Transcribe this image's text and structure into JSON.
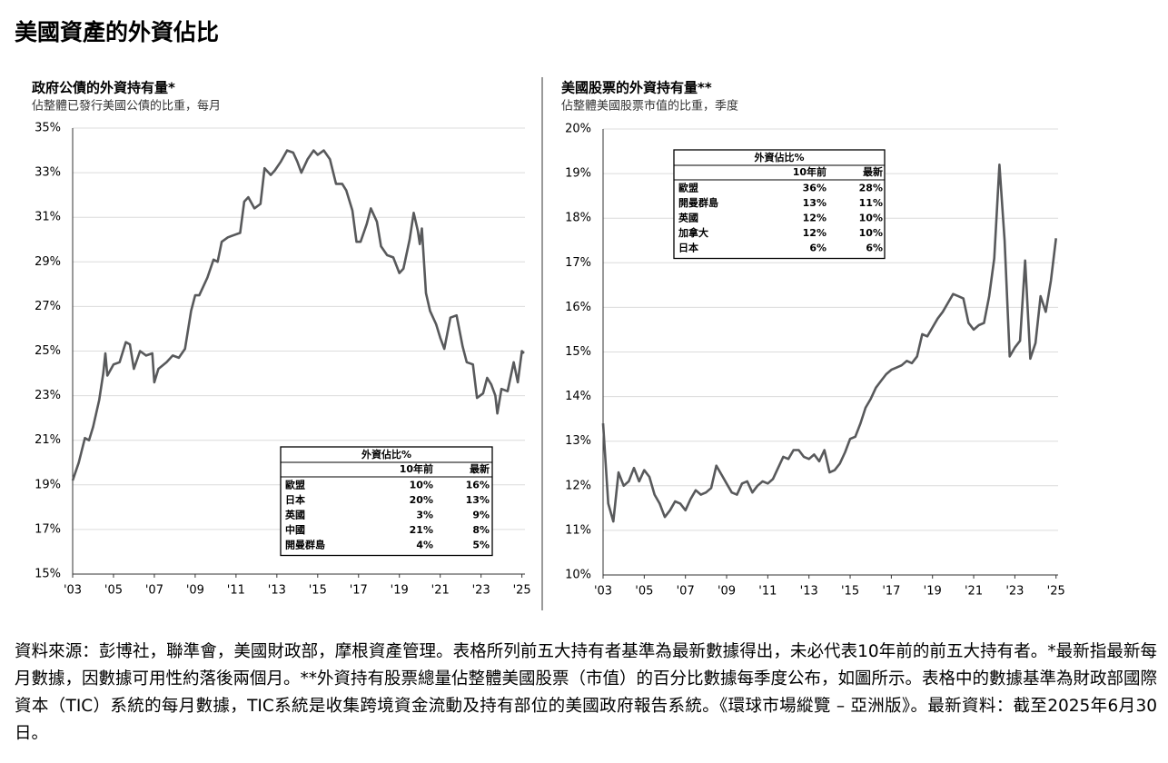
{
  "title": "美國資產的外資佔比",
  "footnote": "資料來源：彭博社，聯準會，美國財政部，摩根資產管理。表格所列前五大持有者基準為最新數據得出，未必代表10年前的前五大持有者。*最新指最新每月數據，因數據可用性約落後兩個月。**外資持有股票總量佔整體美國股票（市值）的百分比數據每季度公布，如圖所示。表格中的數據基準為財政部國際資本（TIC）系統的每月數據，TIC系統是收集跨境資金流動及持有部位的美國政府報告系統。《環球市場縱覽 – 亞洲版》。最新資料：截至2025年6月30日。",
  "chart_data": [
    {
      "type": "line",
      "title": "政府公債的外資持有量*",
      "subtitle": "佔整體已發行美國公債的比重，每月",
      "color": "#58595b",
      "grid": true,
      "x": [
        2003.0,
        2003.3,
        2003.6,
        2003.8,
        2004.0,
        2004.3,
        2004.5,
        2004.6,
        2004.7,
        2005.0,
        2005.3,
        2005.6,
        2005.8,
        2006.0,
        2006.3,
        2006.6,
        2006.9,
        2007.0,
        2007.2,
        2007.6,
        2007.9,
        2008.2,
        2008.5,
        2008.8,
        2009.0,
        2009.2,
        2009.6,
        2009.9,
        2010.1,
        2010.3,
        2010.6,
        2010.9,
        2011.2,
        2011.4,
        2011.6,
        2011.9,
        2012.2,
        2012.4,
        2012.7,
        2012.9,
        2013.2,
        2013.5,
        2013.8,
        2014.0,
        2014.2,
        2014.5,
        2014.8,
        2015.0,
        2015.3,
        2015.6,
        2015.9,
        2016.2,
        2016.4,
        2016.7,
        2016.9,
        2017.1,
        2017.4,
        2017.6,
        2017.9,
        2018.1,
        2018.4,
        2018.7,
        2019.0,
        2019.2,
        2019.5,
        2019.7,
        2019.9,
        2020.0,
        2020.1,
        2020.3,
        2020.5,
        2020.8,
        2021.0,
        2021.2,
        2021.5,
        2021.8,
        2022.1,
        2022.3,
        2022.6,
        2022.8,
        2023.1,
        2023.3,
        2023.5,
        2023.7,
        2023.8,
        2024.0,
        2024.3,
        2024.6,
        2024.8,
        2025.0,
        2025.1
      ],
      "values": [
        19.2,
        20.0,
        21.1,
        21.0,
        21.6,
        22.8,
        24.0,
        24.9,
        23.9,
        24.4,
        24.5,
        25.4,
        25.3,
        24.2,
        25.0,
        24.8,
        24.9,
        23.6,
        24.2,
        24.5,
        24.8,
        24.7,
        25.1,
        26.8,
        27.5,
        27.5,
        28.3,
        29.1,
        29.0,
        29.9,
        30.1,
        30.2,
        30.3,
        31.7,
        31.9,
        31.4,
        31.6,
        33.2,
        32.9,
        33.1,
        33.5,
        34.0,
        33.9,
        33.5,
        33.0,
        33.6,
        34.0,
        33.8,
        34.0,
        33.6,
        32.5,
        32.5,
        32.2,
        31.3,
        29.9,
        29.9,
        30.7,
        31.4,
        30.8,
        29.7,
        29.3,
        29.2,
        28.5,
        28.7,
        30.0,
        31.2,
        30.4,
        29.8,
        30.5,
        27.6,
        26.8,
        26.2,
        25.6,
        25.1,
        26.5,
        26.6,
        25.2,
        24.5,
        24.4,
        22.9,
        23.1,
        23.8,
        23.5,
        23.0,
        22.2,
        23.3,
        23.2,
        24.5,
        23.6,
        25.0,
        24.9
      ],
      "xlim": [
        2003,
        2025.15
      ],
      "ylim": [
        15,
        35
      ],
      "xticks": [
        {
          "value": 2003,
          "label": "'03"
        },
        {
          "value": 2005,
          "label": "'05"
        },
        {
          "value": 2007,
          "label": "'07"
        },
        {
          "value": 2009,
          "label": "'09"
        },
        {
          "value": 2011,
          "label": "'11"
        },
        {
          "value": 2013,
          "label": "'13"
        },
        {
          "value": 2015,
          "label": "'15"
        },
        {
          "value": 2017,
          "label": "'17"
        },
        {
          "value": 2019,
          "label": "'19"
        },
        {
          "value": 2021,
          "label": "'21"
        },
        {
          "value": 2023,
          "label": "'23"
        },
        {
          "value": 2025,
          "label": "'25"
        }
      ],
      "yticks": [
        {
          "value": 15,
          "label": "15%"
        },
        {
          "value": 17,
          "label": "17%"
        },
        {
          "value": 19,
          "label": "19%"
        },
        {
          "value": 21,
          "label": "21%"
        },
        {
          "value": 23,
          "label": "23%"
        },
        {
          "value": 25,
          "label": "25%"
        },
        {
          "value": 27,
          "label": "27%"
        },
        {
          "value": 29,
          "label": "29%"
        },
        {
          "value": 31,
          "label": "31%"
        },
        {
          "value": 33,
          "label": "33%"
        },
        {
          "value": 35,
          "label": "35%"
        }
      ],
      "table": {
        "title": "外資佔比%",
        "columns": [
          "10年前",
          "最新"
        ],
        "rows": [
          [
            "歐盟",
            "10%",
            "16%"
          ],
          [
            "日本",
            "20%",
            "13%"
          ],
          [
            "英國",
            "3%",
            "9%"
          ],
          [
            "中國",
            "21%",
            "8%"
          ],
          [
            "開曼群島",
            "4%",
            "5%"
          ]
        ]
      }
    },
    {
      "type": "line",
      "title": "美國股票的外資持有量**",
      "subtitle": "佔整體美國股票市值的比重，季度",
      "color": "#58595b",
      "grid": true,
      "x": [
        2003.0,
        2003.25,
        2003.5,
        2003.75,
        2004.0,
        2004.25,
        2004.5,
        2004.75,
        2005.0,
        2005.25,
        2005.5,
        2005.75,
        2006.0,
        2006.25,
        2006.5,
        2006.75,
        2007.0,
        2007.25,
        2007.5,
        2007.75,
        2008.0,
        2008.25,
        2008.5,
        2008.75,
        2009.0,
        2009.25,
        2009.5,
        2009.75,
        2010.0,
        2010.25,
        2010.5,
        2010.75,
        2011.0,
        2011.25,
        2011.5,
        2011.75,
        2012.0,
        2012.25,
        2012.5,
        2012.75,
        2013.0,
        2013.25,
        2013.5,
        2013.75,
        2014.0,
        2014.25,
        2014.5,
        2014.75,
        2015.0,
        2015.25,
        2015.5,
        2015.75,
        2016.0,
        2016.25,
        2016.5,
        2016.75,
        2017.0,
        2017.25,
        2017.5,
        2017.75,
        2018.0,
        2018.25,
        2018.5,
        2018.75,
        2019.0,
        2019.25,
        2019.5,
        2019.75,
        2020.0,
        2020.25,
        2020.5,
        2020.75,
        2021.0,
        2021.25,
        2021.5,
        2021.75,
        2022.0,
        2022.25,
        2022.5,
        2022.75,
        2023.0,
        2023.25,
        2023.5,
        2023.75,
        2024.0,
        2024.25,
        2024.5,
        2024.75,
        2025.0
      ],
      "values": [
        13.4,
        11.6,
        11.2,
        12.3,
        12.0,
        12.1,
        12.4,
        12.1,
        12.35,
        12.2,
        11.8,
        11.6,
        11.3,
        11.45,
        11.65,
        11.6,
        11.45,
        11.7,
        11.9,
        11.8,
        11.85,
        11.95,
        12.45,
        12.25,
        12.05,
        11.85,
        11.8,
        12.05,
        12.1,
        11.85,
        12.0,
        12.1,
        12.05,
        12.15,
        12.4,
        12.65,
        12.6,
        12.8,
        12.8,
        12.65,
        12.6,
        12.7,
        12.55,
        12.8,
        12.3,
        12.35,
        12.5,
        12.75,
        13.05,
        13.1,
        13.4,
        13.75,
        13.95,
        14.2,
        14.35,
        14.5,
        14.6,
        14.65,
        14.7,
        14.8,
        14.75,
        14.9,
        15.4,
        15.35,
        15.55,
        15.75,
        15.9,
        16.1,
        16.3,
        16.25,
        16.2,
        15.65,
        15.5,
        15.6,
        15.65,
        16.25,
        17.1,
        19.2,
        17.5,
        14.9,
        15.1,
        15.25,
        17.05,
        14.85,
        15.2,
        16.25,
        15.9,
        16.6,
        17.55
      ],
      "xlim": [
        2003,
        2025.1
      ],
      "ylim": [
        10,
        20
      ],
      "xticks": [
        {
          "value": 2003,
          "label": "'03"
        },
        {
          "value": 2005,
          "label": "'05"
        },
        {
          "value": 2007,
          "label": "'07"
        },
        {
          "value": 2009,
          "label": "'09"
        },
        {
          "value": 2011,
          "label": "'11"
        },
        {
          "value": 2013,
          "label": "'13"
        },
        {
          "value": 2015,
          "label": "'15"
        },
        {
          "value": 2017,
          "label": "'17"
        },
        {
          "value": 2019,
          "label": "'19"
        },
        {
          "value": 2021,
          "label": "'21"
        },
        {
          "value": 2023,
          "label": "'23"
        },
        {
          "value": 2025,
          "label": "'25"
        }
      ],
      "yticks": [
        {
          "value": 10,
          "label": "10%"
        },
        {
          "value": 11,
          "label": "11%"
        },
        {
          "value": 12,
          "label": "12%"
        },
        {
          "value": 13,
          "label": "13%"
        },
        {
          "value": 14,
          "label": "14%"
        },
        {
          "value": 15,
          "label": "15%"
        },
        {
          "value": 16,
          "label": "16%"
        },
        {
          "value": 17,
          "label": "17%"
        },
        {
          "value": 18,
          "label": "18%"
        },
        {
          "value": 19,
          "label": "19%"
        },
        {
          "value": 20,
          "label": "20%"
        }
      ],
      "table": {
        "title": "外資佔比%",
        "columns": [
          "10年前",
          "最新"
        ],
        "rows": [
          [
            "歐盟",
            "36%",
            "28%"
          ],
          [
            "開曼群島",
            "13%",
            "11%"
          ],
          [
            "英國",
            "12%",
            "10%"
          ],
          [
            "加拿大",
            "12%",
            "10%"
          ],
          [
            "日本",
            "6%",
            "6%"
          ]
        ]
      }
    }
  ]
}
